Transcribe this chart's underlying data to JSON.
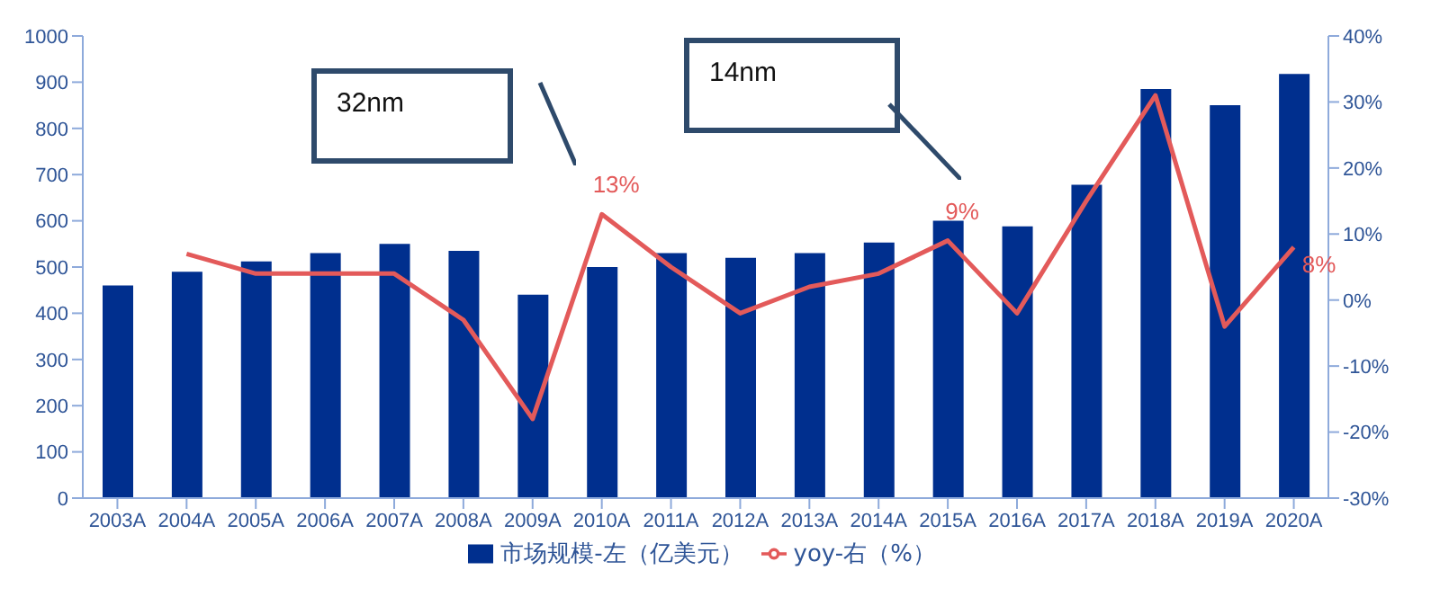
{
  "chart_data": {
    "type": "bar",
    "categories": [
      "2003A",
      "2004A",
      "2005A",
      "2006A",
      "2007A",
      "2008A",
      "2009A",
      "2010A",
      "2011A",
      "2012A",
      "2013A",
      "2014A",
      "2015A",
      "2016A",
      "2017A",
      "2018A",
      "2019A",
      "2020A"
    ],
    "series": [
      {
        "name": "市场规模-左（亿美元）",
        "color": "#002f8e",
        "values": [
          460,
          490,
          512,
          530,
          550,
          535,
          440,
          500,
          530,
          520,
          530,
          553,
          600,
          588,
          678,
          885,
          850,
          918
        ]
      },
      {
        "name": "yoy-右（%）",
        "type": "line",
        "axis": "y2",
        "color": "#e35a5a",
        "values": [
          null,
          7,
          4,
          4,
          4,
          -3,
          -18,
          13,
          5,
          -2,
          2,
          4,
          9,
          -2,
          15,
          31,
          -4,
          8
        ],
        "value_labels": [
          null,
          null,
          null,
          null,
          null,
          null,
          null,
          "13%",
          null,
          null,
          null,
          null,
          "9%",
          null,
          null,
          null,
          null,
          "8%"
        ]
      }
    ],
    "ylim": [
      0,
      1000
    ],
    "yticks": [
      0,
      100,
      200,
      300,
      400,
      500,
      600,
      700,
      800,
      900,
      1000
    ],
    "y2lim": [
      -30,
      40
    ],
    "y2ticks": [
      {
        "value": -30,
        "label": "-30%"
      },
      {
        "value": -20,
        "label": "-20%"
      },
      {
        "value": -10,
        "label": "-10%"
      },
      {
        "value": 0,
        "label": "0%"
      },
      {
        "value": 10,
        "label": "10%"
      },
      {
        "value": 20,
        "label": "20%"
      },
      {
        "value": 30,
        "label": "30%"
      },
      {
        "value": 40,
        "label": "40%"
      }
    ],
    "annotations": [
      "32nm",
      "14nm"
    ],
    "grid": false,
    "legend": "bottom",
    "marker": "none",
    "line_style": "solid"
  }
}
